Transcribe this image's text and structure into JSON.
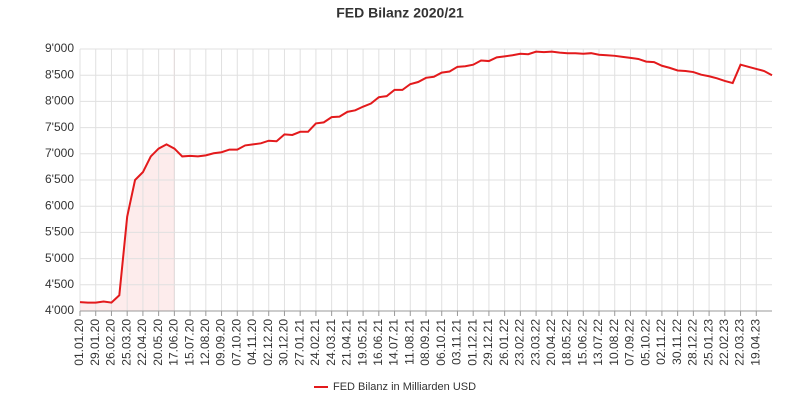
{
  "chart_data": {
    "type": "line",
    "title": "FED Bilanz 2020/21",
    "categories": [
      "01.01.20",
      null,
      "29.01.20",
      null,
      "26.02.20",
      null,
      "25.03.20",
      null,
      "22.04.20",
      null,
      "20.05.20",
      null,
      "17.06.20",
      null,
      "15.07.20",
      null,
      "12.08.20",
      null,
      "09.09.20",
      null,
      "07.10.20",
      null,
      "04.11.20",
      null,
      "02.12.20",
      null,
      "30.12.20",
      null,
      "27.01.21",
      null,
      "24.02.21",
      null,
      "24.03.21",
      null,
      "21.04.21",
      null,
      "19.05.21",
      null,
      "16.06.21",
      null,
      "14.07.21",
      null,
      "11.08.21",
      null,
      "08.09.21",
      null,
      "06.10.21",
      null,
      "03.11.21",
      null,
      "01.12.21",
      null,
      "29.12.21",
      null,
      "26.01.22",
      null,
      "23.02.22",
      null,
      "23.03.22",
      null,
      "20.04.22",
      null,
      "18.05.22",
      null,
      "15.06.22",
      null,
      "13.07.22",
      null,
      "10.08.22",
      null,
      "07.09.22",
      null,
      "05.10.22",
      null,
      "02.11.22",
      null,
      "30.11.22",
      null,
      "28.12.22",
      null,
      "25.01.23",
      null,
      "22.02.23",
      null,
      "22.03.23",
      null,
      "19.04.23",
      null,
      null
    ],
    "series": [
      {
        "name": "FED Bilanz in Milliarden USD",
        "color": "#e31a1c",
        "values": [
          4170,
          4160,
          4160,
          4180,
          4160,
          4300,
          5800,
          6500,
          6650,
          6950,
          7100,
          7180,
          7100,
          6950,
          6960,
          6950,
          6970,
          7010,
          7030,
          7080,
          7080,
          7160,
          7180,
          7200,
          7250,
          7240,
          7370,
          7360,
          7420,
          7420,
          7580,
          7600,
          7700,
          7710,
          7800,
          7830,
          7900,
          7960,
          8080,
          8100,
          8220,
          8220,
          8330,
          8370,
          8450,
          8470,
          8550,
          8570,
          8660,
          8670,
          8700,
          8780,
          8770,
          8840,
          8860,
          8880,
          8910,
          8900,
          8950,
          8940,
          8950,
          8930,
          8920,
          8920,
          8910,
          8920,
          8890,
          8880,
          8870,
          8850,
          8830,
          8810,
          8760,
          8750,
          8680,
          8640,
          8590,
          8580,
          8560,
          8510,
          8480,
          8440,
          8390,
          8350,
          8700,
          8660,
          8620,
          8580,
          8500
        ]
      }
    ],
    "ylim": [
      4000,
      9000
    ],
    "yticks": [
      {
        "value": 4000,
        "label": "4'000"
      },
      {
        "value": 4500,
        "label": "4'500"
      },
      {
        "value": 5000,
        "label": "5'000"
      },
      {
        "value": 5500,
        "label": "5'500"
      },
      {
        "value": 6000,
        "label": "6'000"
      },
      {
        "value": 6500,
        "label": "6'500"
      },
      {
        "value": 7000,
        "label": "7'000"
      },
      {
        "value": 7500,
        "label": "7'500"
      },
      {
        "value": 8000,
        "label": "8'000"
      },
      {
        "value": 8500,
        "label": "8'500"
      },
      {
        "value": 9000,
        "label": "9'000"
      }
    ],
    "grid": true,
    "legend": "bottom",
    "highlight": {
      "from": 0,
      "to": 12,
      "color": "#fdecec"
    }
  }
}
